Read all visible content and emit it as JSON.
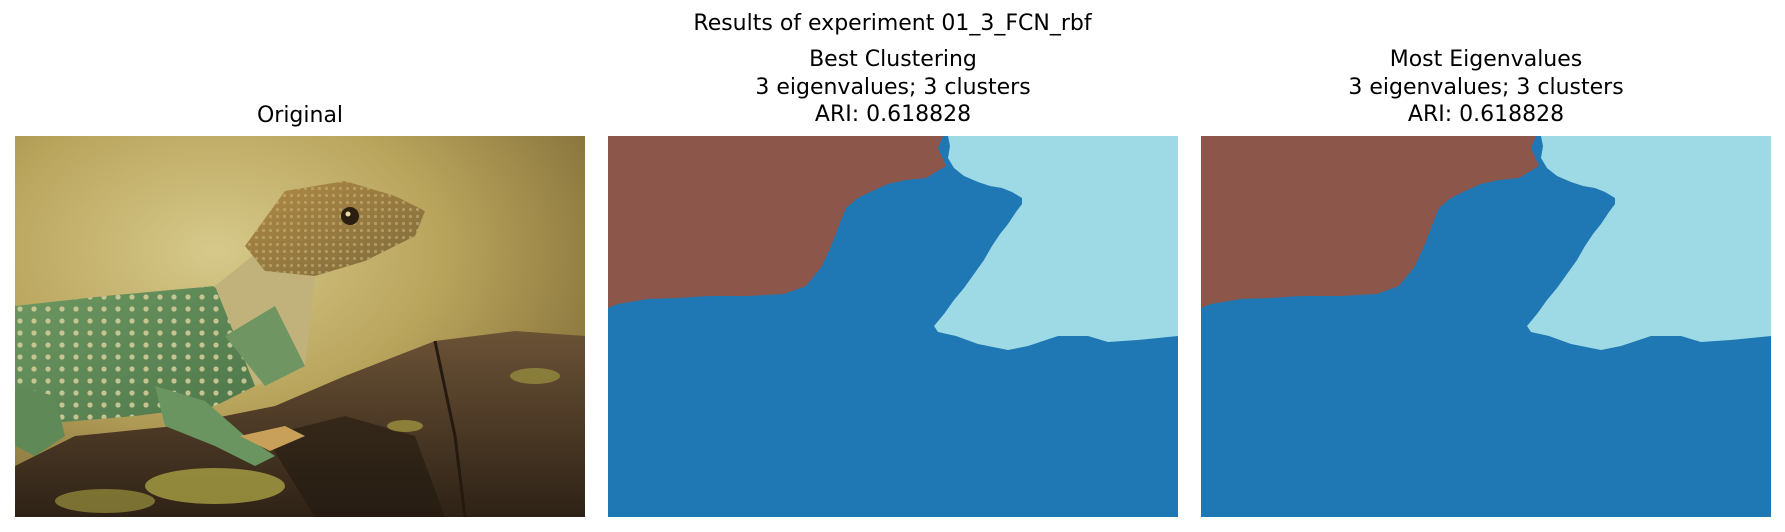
{
  "figure": {
    "suptitle": "Results of experiment 01_3_FCN_rbf"
  },
  "panels": [
    {
      "title_lines": [
        "Original"
      ]
    },
    {
      "title_lines": [
        "Best Clustering",
        "3 eigenvalues; 3 clusters",
        "ARI: 0.618828"
      ]
    },
    {
      "title_lines": [
        "Most Eigenvalues",
        "3 eigenvalues; 3 clusters",
        "ARI: 0.618828"
      ]
    }
  ],
  "colors": {
    "cluster_brown": "#8c564b",
    "cluster_blue": "#1f77b4",
    "cluster_light_blue": "#9edae5"
  }
}
